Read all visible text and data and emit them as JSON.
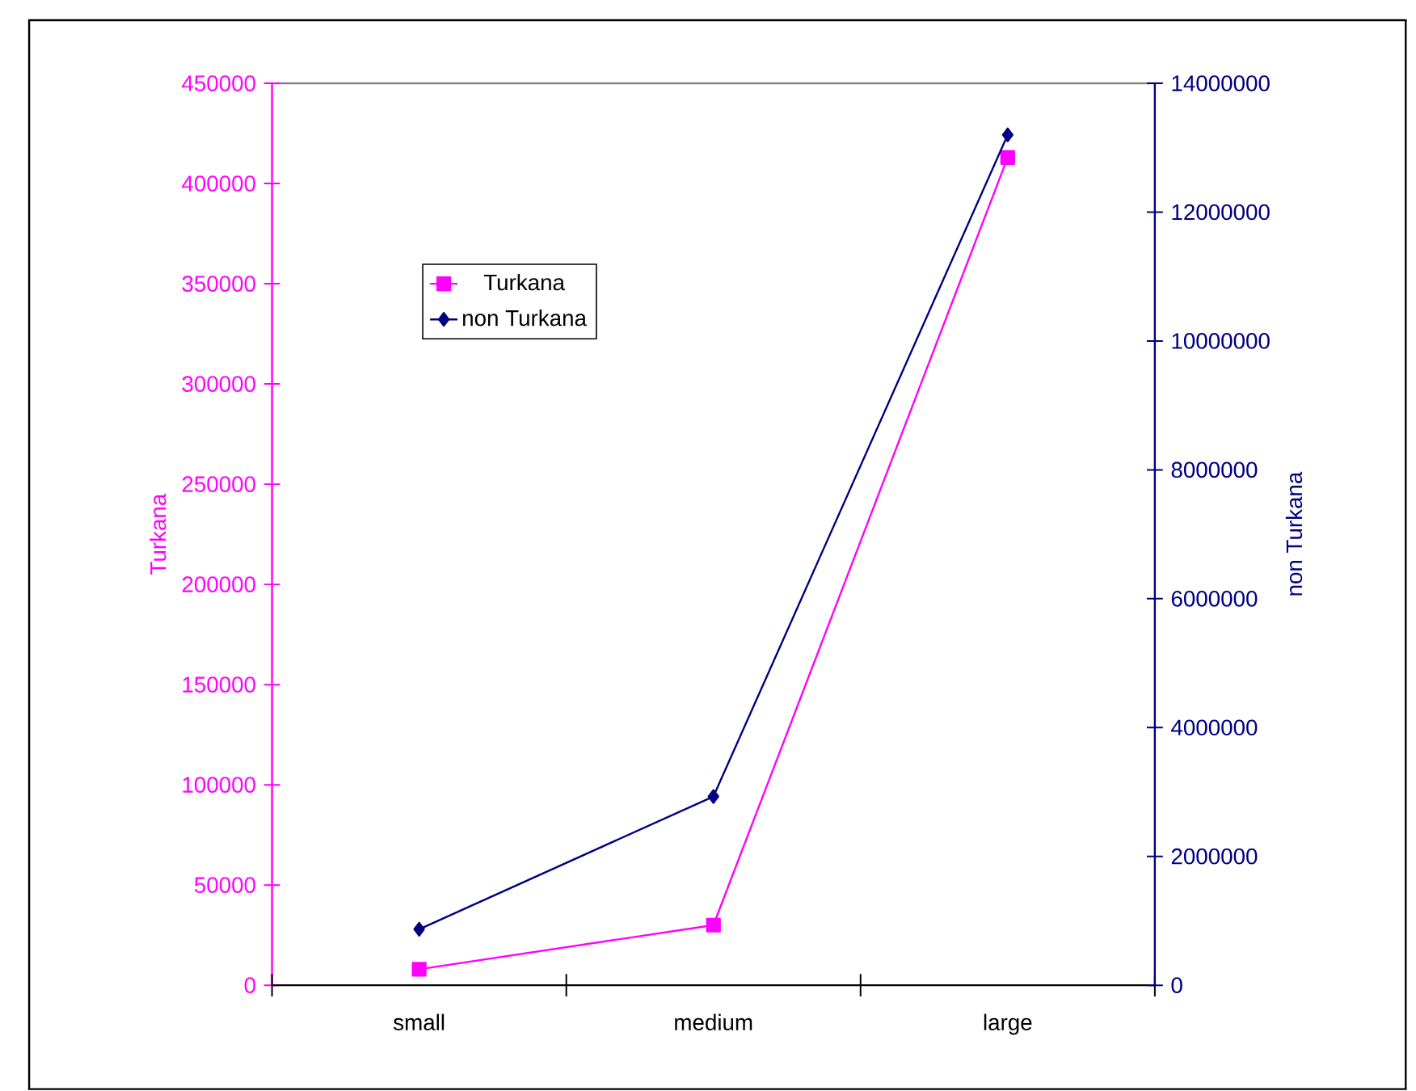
{
  "chart_data": {
    "type": "line",
    "categories": [
      "small",
      "medium",
      "large"
    ],
    "ylabel": "Turkana",
    "y2label": "non Turkana",
    "ylim": [
      0,
      450000
    ],
    "yticks": [
      0,
      50000,
      100000,
      150000,
      200000,
      250000,
      300000,
      350000,
      400000,
      450000
    ],
    "y2lim": [
      0,
      14000000
    ],
    "y2ticks": [
      0,
      2000000,
      4000000,
      6000000,
      8000000,
      10000000,
      12000000,
      14000000
    ],
    "legend": "top left",
    "grid": false,
    "line_style": "solid",
    "series": [
      {
        "name": "Turkana",
        "color": "#ff00ff",
        "marker": "square",
        "values": [
          8000,
          30000,
          413000
        ]
      },
      {
        "name": "non Turkana",
        "color": "#000080",
        "marker": "diamond",
        "axis": "y2",
        "values": [
          870000,
          2930000,
          13200000
        ]
      }
    ]
  }
}
